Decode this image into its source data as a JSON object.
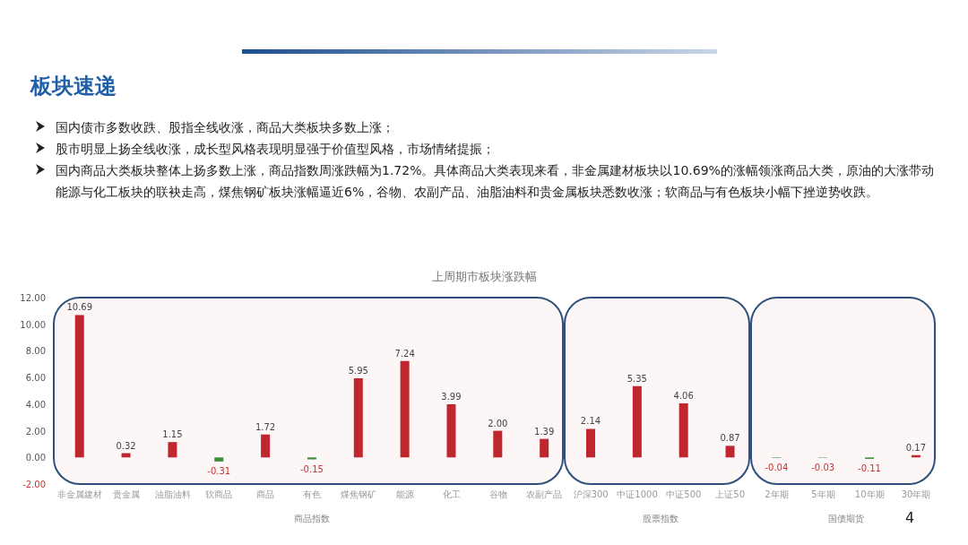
{
  "chart_data": {
    "type": "bar",
    "title": "上周期市板块涨跌幅",
    "subtitle": "板块速递",
    "categories": [
      "非金属建材",
      "贵金属",
      "油脂油料",
      "软商品",
      "商品",
      "有色",
      "煤焦钢矿",
      "能源",
      "化工",
      "谷物",
      "农副产品",
      "沪深300",
      "中证1000",
      "中证500",
      "上证50",
      "2年期",
      "5年期",
      "10年期",
      "30年期"
    ],
    "values": [
      10.69,
      0.32,
      1.15,
      -0.31,
      1.72,
      -0.15,
      5.95,
      7.24,
      3.99,
      2.0,
      1.39,
      2.14,
      5.35,
      4.06,
      0.87,
      -0.04,
      -0.03,
      -0.11,
      0.17
    ],
    "colors": [
      "#c0262d",
      "#c0262d",
      "#c0262d",
      "#3f8f3f",
      "#c0262d",
      "#3f8f3f",
      "#c0262d",
      "#c0262d",
      "#c0262d",
      "#c0262d",
      "#c0262d",
      "#c0262d",
      "#c0262d",
      "#c0262d",
      "#c0262d",
      "#3f8f3f",
      "#3f8f3f",
      "#3f8f3f",
      "#c0262d"
    ],
    "value_labels": [
      "10.69",
      "0.32",
      "1.15",
      "-0.31",
      "1.72",
      "-0.15",
      "5.95",
      "7.24",
      "3.99",
      "2.00",
      "1.39",
      "2.14",
      "5.35",
      "4.06",
      "0.87",
      "-0.04",
      "-0.03",
      "-0.11",
      "0.17"
    ],
    "ylim": [
      -2,
      12
    ],
    "yticks": [
      {
        "value": -2,
        "label": "-2.00"
      },
      {
        "value": 0,
        "label": "0.00"
      },
      {
        "value": 2,
        "label": "2.00"
      },
      {
        "value": 4,
        "label": "4.00"
      },
      {
        "value": 6,
        "label": "6.00"
      },
      {
        "value": 8,
        "label": "8.00"
      },
      {
        "value": 10,
        "label": "10.00"
      },
      {
        "value": 12,
        "label": "12.00"
      }
    ],
    "grid": false,
    "legend": false,
    "annotations": [
      "国内债市多数收跌、股指全线收涨，商品大类板块多数上涨；",
      "股市明显上扬全线收涨，成长型风格表现明显强于价值型风格，市场情绪提振；",
      "国内商品大类板块整体上扬多数上涨，商品指数周涨跌幅为1.72%。具体商品大类表现来看，非金属建材板块以10.69%的涨幅领涨商品大类，原油的大涨带动能源与化工板块的联袂走高，煤焦钢矿板块涨幅逼近6%，谷物、农副产品、油脂油料和贵金属板块悉数收涨；软商品与有色板块小幅下挫逆势收跌。",
      "商品指数",
      "股票指数",
      "国债期货",
      "4"
    ]
  }
}
